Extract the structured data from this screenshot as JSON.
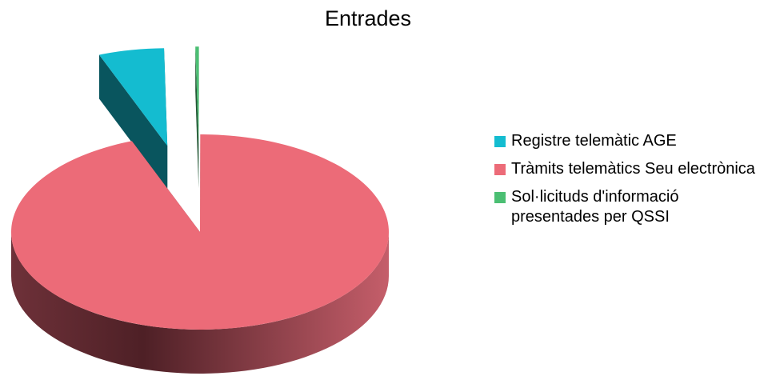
{
  "chart_data": {
    "type": "pie3d",
    "title": "Entrades",
    "categories": [
      "Registre telemàtic AGE",
      "Tràmits telemàtics Seu electrònica",
      "Sol·licituds d'informació presentades per QSSI"
    ],
    "values": [
      5.6,
      94.1,
      0.3
    ],
    "colors": [
      "#14bcd0",
      "#ec6b78",
      "#4bbf73"
    ],
    "exploded": [
      true,
      false,
      true
    ],
    "legend": "right"
  }
}
